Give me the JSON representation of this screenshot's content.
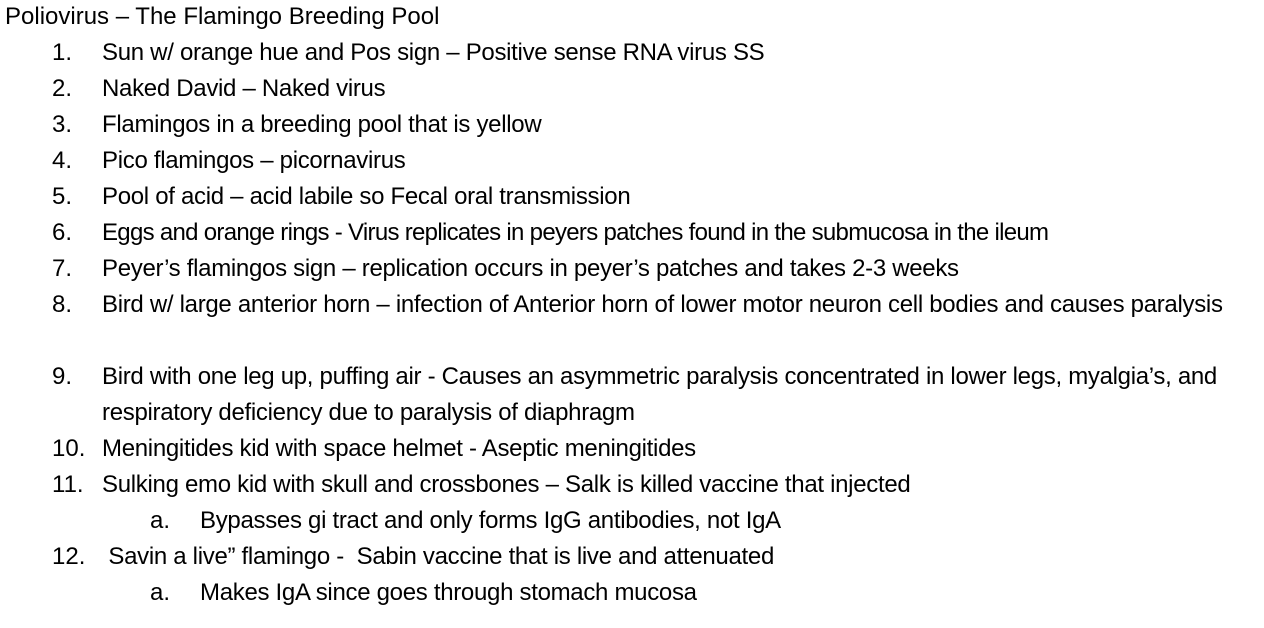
{
  "document": {
    "title": "Poliovirus – The Flamingo Breeding Pool",
    "items": [
      {
        "num": "1.",
        "text": "Sun w/ orange hue and Pos sign – Positive sense RNA virus SS"
      },
      {
        "num": "2.",
        "text": "Naked David – Naked virus"
      },
      {
        "num": "3.",
        "text": "Flamingos in a breeding pool that is yellow"
      },
      {
        "num": "4.",
        "text": "Pico flamingos – picornavirus"
      },
      {
        "num": "5.",
        "text": "Pool of acid – acid labile so Fecal oral transmission"
      },
      {
        "num": "6.",
        "text": "Eggs and orange rings - Virus replicates in peyers patches found in the submucosa in the ileum"
      },
      {
        "num": "7.",
        "text": "Peyer’s flamingos sign – replication occurs in peyer’s patches and takes 2-3 weeks"
      },
      {
        "num": "8.",
        "text": "Bird w/ large anterior horn – infection of Anterior horn of lower motor neuron cell bodies and causes paralysis"
      },
      {
        "num": "9.",
        "text": "Bird with one leg up, puffing air - Causes an asymmetric paralysis concentrated in lower legs, myalgia’s, and respiratory deficiency due to paralysis of diaphragm"
      },
      {
        "num": "10.",
        "text": "Meningitides kid with space helmet - Aseptic meningitides"
      },
      {
        "num": "11.",
        "text": "Sulking emo kid with skull and crossbones – Salk is killed vaccine that injected"
      },
      {
        "num": "a.",
        "text": "Bypasses gi tract and only forms IgG antibodies, not IgA"
      },
      {
        "num": "12.",
        "text": " Savin a live” flamingo -  Sabin vaccine that is live and attenuated"
      },
      {
        "num": "a.",
        "text": "Makes IgA since goes through stomach mucosa"
      }
    ]
  }
}
